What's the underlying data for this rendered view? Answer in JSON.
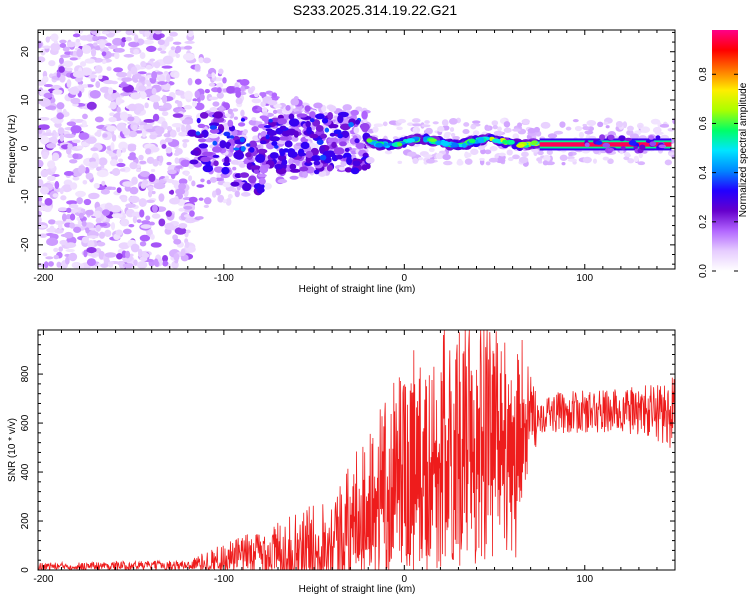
{
  "title": "S233.2025.314.19.22.G21",
  "chart_data": [
    {
      "type": "heatmap",
      "xlabel": "Height of straight line (km)",
      "ylabel": "Frequency (Hz)",
      "xlim": [
        -203,
        150
      ],
      "ylim": [
        -25,
        24.5
      ],
      "xticks": [
        -200,
        -100,
        0,
        100
      ],
      "yticks": [
        -20,
        -10,
        0,
        10,
        20
      ],
      "colorbar": {
        "label": "Normalized spectral amplitude",
        "range": [
          0,
          0.98
        ],
        "ticks": [
          "0.0",
          "0.2",
          "0.4",
          "0.6",
          "0.8"
        ],
        "tick_values": [
          0,
          0.2,
          0.4,
          0.6,
          0.8
        ],
        "colors": [
          "#ffffff",
          "#e6ccff",
          "#b266ff",
          "#6600cc",
          "#2200ff",
          "#0088ff",
          "#00e5ff",
          "#00ff66",
          "#aaff00",
          "#ffee00",
          "#ff7700",
          "#ff0000",
          "#ff0088"
        ]
      },
      "features": {
        "noise_region": {
          "x_range": [
            -203,
            -118
          ],
          "freq_range": [
            -25,
            24.5
          ],
          "amplitude": 0.1
        },
        "scatter_region": {
          "x_range": [
            -118,
            -20
          ],
          "freq_center": 2,
          "amplitude": 0.2
        },
        "ridge": {
          "x_range": [
            -20,
            75
          ],
          "freq": 1.3,
          "amplitude": 0.55
        },
        "stable_line": {
          "x_range": [
            75,
            148
          ],
          "freq": 0.8,
          "amplitude": 0.95
        }
      }
    },
    {
      "type": "line",
      "xlabel": "Height of straight line (km)",
      "ylabel": "SNR (10 * v/v)",
      "xlim": [
        -203,
        150
      ],
      "ylim": [
        0,
        980
      ],
      "xticks": [
        -200,
        -100,
        0,
        100
      ],
      "yticks": [
        0,
        200,
        400,
        600,
        800
      ],
      "color": "#ee1c1c",
      "envelope": [
        {
          "x": -203,
          "base": 15,
          "amp": 15
        },
        {
          "x": -120,
          "base": 20,
          "amp": 20
        },
        {
          "x": -100,
          "base": 50,
          "amp": 60
        },
        {
          "x": -60,
          "base": 80,
          "amp": 150
        },
        {
          "x": -40,
          "base": 120,
          "amp": 200
        },
        {
          "x": -20,
          "base": 250,
          "amp": 300
        },
        {
          "x": 0,
          "base": 350,
          "amp": 400
        },
        {
          "x": 30,
          "base": 450,
          "amp": 480
        },
        {
          "x": 60,
          "base": 550,
          "amp": 400
        },
        {
          "x": 75,
          "base": 640,
          "amp": 80
        },
        {
          "x": 130,
          "base": 650,
          "amp": 100
        },
        {
          "x": 150,
          "base": 640,
          "amp": 150
        }
      ]
    }
  ]
}
